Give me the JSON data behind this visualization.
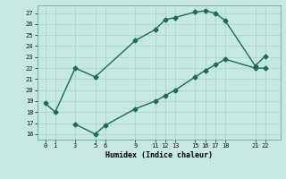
{
  "xlabel": "Humidex (Indice chaleur)",
  "ylabel": "",
  "bg_color": "#c5e8e0",
  "grid_color": "#aad4cc",
  "line_color": "#1a6b5a",
  "ylim": [
    15.5,
    27.7
  ],
  "xlim": [
    -0.8,
    23.5
  ],
  "yticks": [
    16,
    17,
    18,
    19,
    20,
    21,
    22,
    23,
    24,
    25,
    26,
    27
  ],
  "xticks": [
    0,
    1,
    3,
    5,
    6,
    9,
    11,
    12,
    13,
    15,
    16,
    17,
    18,
    21,
    22
  ],
  "line1_x": [
    0,
    1,
    3,
    5,
    9,
    11,
    12,
    13,
    15,
    16,
    17,
    18,
    21,
    22
  ],
  "line1_y": [
    18.8,
    18.0,
    22.0,
    21.2,
    24.5,
    25.5,
    26.4,
    26.6,
    27.1,
    27.2,
    27.0,
    26.3,
    22.2,
    23.1
  ],
  "line2_x": [
    3,
    5,
    6,
    9,
    11,
    12,
    13,
    15,
    16,
    17,
    18,
    21,
    22
  ],
  "line2_y": [
    16.9,
    16.0,
    16.8,
    18.3,
    19.0,
    19.5,
    20.0,
    21.2,
    21.8,
    22.3,
    22.8,
    22.0,
    22.0
  ],
  "marker": "D",
  "markersize": 2.5,
  "linewidth": 1.0,
  "tick_fontsize": 5.0,
  "xlabel_fontsize": 6.0
}
